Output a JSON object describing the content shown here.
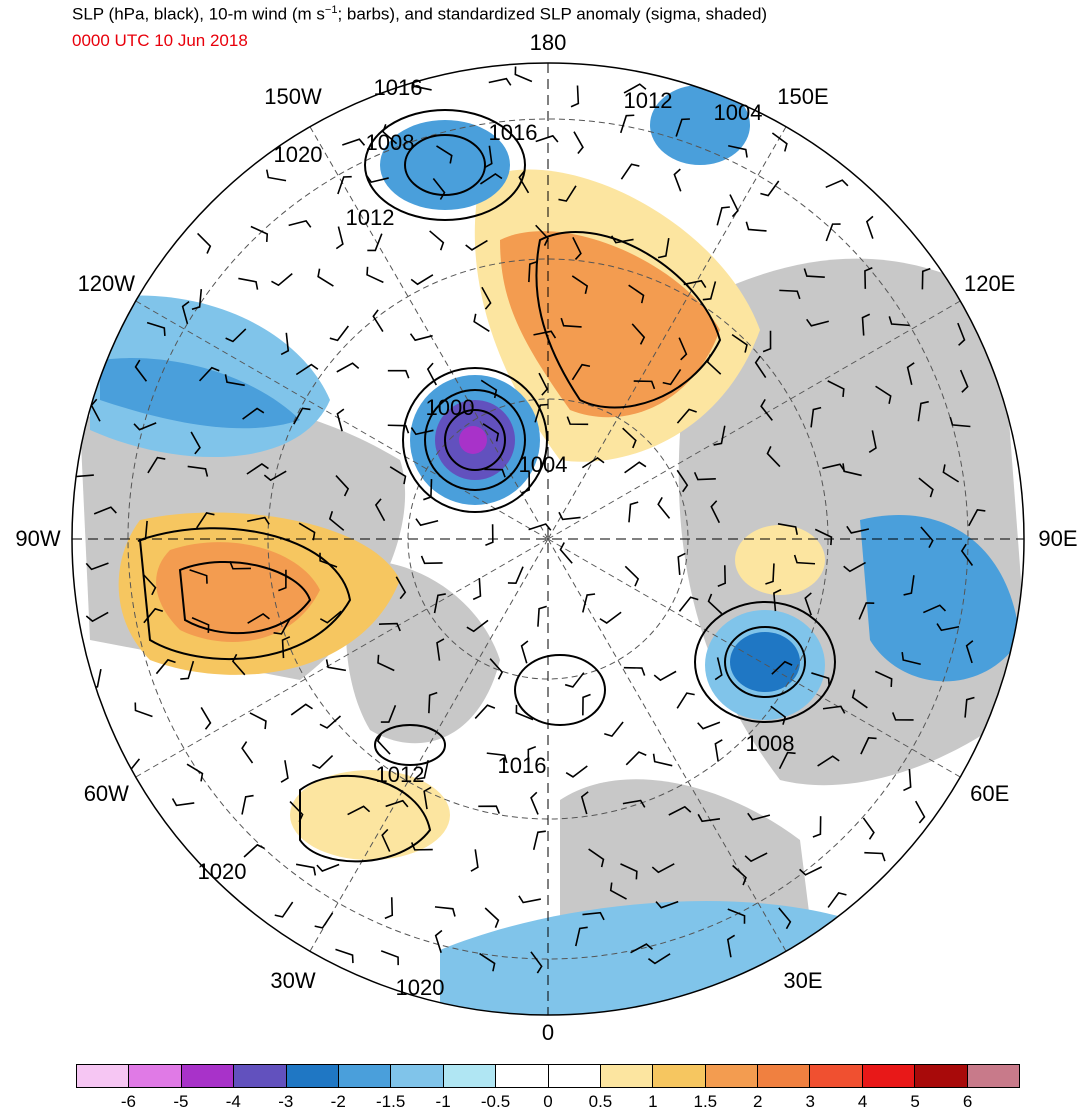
{
  "header": {
    "title_main": "SLP (hPa, black), 10-m wind (m s",
    "title_sup": "−1",
    "title_rest": "; barbs), and standardized SLP anomaly (sigma, shaded)",
    "datetime": "0000 UTC 10 Jun 2018",
    "datetime_color": "#e8000b"
  },
  "map": {
    "projection": "north-polar-stereographic",
    "ocean_color": "#ffffff",
    "land_color": "#c8c8c8",
    "longitude_labels": [
      {
        "id": "lon-180",
        "text": "180",
        "lon": 180
      },
      {
        "id": "lon-150e",
        "text": "150E",
        "lon": 150
      },
      {
        "id": "lon-120e",
        "text": "120E",
        "lon": 120
      },
      {
        "id": "lon-90e",
        "text": "90E",
        "lon": 90
      },
      {
        "id": "lon-60e",
        "text": "60E",
        "lon": 60
      },
      {
        "id": "lon-30e",
        "text": "30E",
        "lon": 30
      },
      {
        "id": "lon-0",
        "text": "0",
        "lon": 0
      },
      {
        "id": "lon-30w",
        "text": "30W",
        "lon": -30
      },
      {
        "id": "lon-60w",
        "text": "60W",
        "lon": -60
      },
      {
        "id": "lon-90w",
        "text": "90W",
        "lon": -90
      },
      {
        "id": "lon-120w",
        "text": "120W",
        "lon": -120
      },
      {
        "id": "lon-150w",
        "text": "150W",
        "lon": -150
      }
    ],
    "contour_labels": [
      {
        "id": "c1016-a",
        "text": "1016"
      },
      {
        "id": "c1008-a",
        "text": "1008"
      },
      {
        "id": "c1016-b",
        "text": "1016"
      },
      {
        "id": "c1020-a",
        "text": "1020"
      },
      {
        "id": "c1012-a",
        "text": "1012"
      },
      {
        "id": "c1012-b",
        "text": "1012"
      },
      {
        "id": "c1004-a",
        "text": "1004"
      },
      {
        "id": "c1000-a",
        "text": "1000"
      },
      {
        "id": "c1004-b",
        "text": "1004"
      },
      {
        "id": "c1008-b",
        "text": "1008"
      },
      {
        "id": "c1012-c",
        "text": "1012"
      },
      {
        "id": "c1016-c",
        "text": "1016"
      },
      {
        "id": "c1020-b",
        "text": "1020"
      },
      {
        "id": "c1020-c",
        "text": "1020"
      }
    ],
    "anomaly_features": [
      {
        "id": "low-canada-arctic",
        "sigma": -4,
        "color": "#6a3bc4"
      },
      {
        "id": "high-east-siberia",
        "sigma": 2,
        "color": "#f08a4b"
      },
      {
        "id": "high-hudson-bay",
        "sigma": 2,
        "color": "#f08a4b"
      },
      {
        "id": "low-west-siberia",
        "sigma": -2,
        "color": "#2f7fc6"
      },
      {
        "id": "low-gulf-alaska",
        "sigma": -2,
        "color": "#2f7fc6"
      },
      {
        "id": "low-bering",
        "sigma": -2,
        "color": "#2f7fc6"
      },
      {
        "id": "high-atlantic",
        "sigma": 1,
        "color": "#fbe39a"
      }
    ]
  },
  "colorbar": {
    "colors": [
      "#f6c6f3",
      "#e07ae6",
      "#a832c9",
      "#6251be",
      "#1f77c4",
      "#4a9fdb",
      "#80c4ea",
      "#b0e6f3",
      "#ffffff",
      "#ffffff",
      "#fce5a0",
      "#f6c660",
      "#f39c50",
      "#f08040",
      "#f05030",
      "#e81818",
      "#a80a0a",
      "#c87a8a"
    ],
    "ticks": [
      "-6",
      "-5",
      "-4",
      "-3",
      "-2",
      "-1.5",
      "-1",
      "-0.5",
      "0",
      "0.5",
      "1",
      "1.5",
      "2",
      "3",
      "4",
      "5",
      "6"
    ]
  }
}
